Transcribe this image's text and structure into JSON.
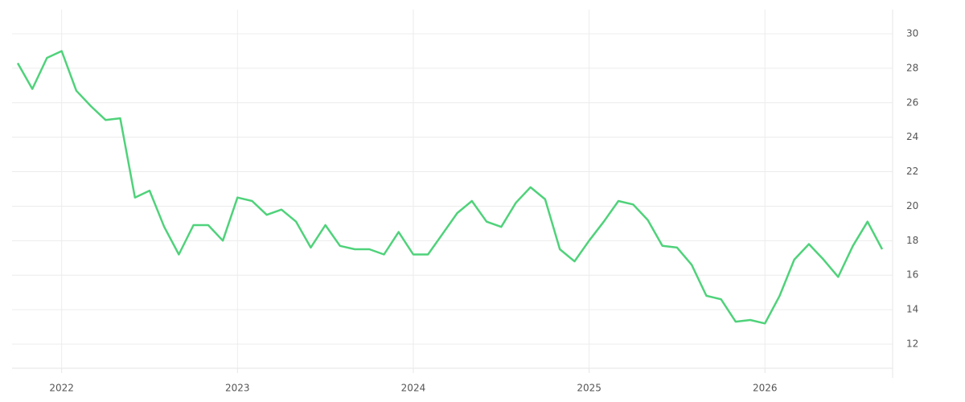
{
  "chart_data": {
    "type": "line",
    "categories": [
      null,
      null,
      null,
      "2022",
      null,
      null,
      null,
      null,
      null,
      null,
      null,
      null,
      null,
      null,
      null,
      "2023",
      null,
      null,
      null,
      null,
      null,
      null,
      null,
      null,
      null,
      null,
      null,
      "2024",
      null,
      null,
      null,
      null,
      null,
      null,
      null,
      null,
      null,
      null,
      null,
      "2025",
      null,
      null,
      null,
      null,
      null,
      null,
      null,
      null,
      null,
      null,
      null,
      "2026",
      null,
      null,
      null,
      null,
      null,
      null,
      null,
      null
    ],
    "values": [
      28.3,
      26.8,
      28.6,
      29.0,
      26.7,
      25.8,
      25.0,
      25.1,
      20.5,
      20.9,
      18.8,
      17.2,
      18.9,
      18.9,
      18.0,
      20.5,
      20.3,
      19.5,
      19.8,
      19.1,
      17.6,
      18.9,
      17.7,
      17.5,
      17.5,
      17.2,
      18.5,
      17.2,
      17.2,
      18.4,
      19.6,
      20.3,
      19.1,
      18.8,
      20.2,
      21.1,
      20.4,
      17.5,
      16.8,
      18.0,
      19.1,
      20.3,
      20.1,
      19.2,
      17.7,
      17.6,
      16.6,
      14.8,
      14.6,
      13.3,
      13.4,
      13.2,
      14.8,
      16.9,
      17.8,
      16.9,
      15.9,
      17.7,
      19.1,
      17.5
    ],
    "color": "#4fd27a",
    "ylim": [
      10.6,
      31.4
    ],
    "yticks": [
      12,
      14,
      16,
      18,
      20,
      22,
      24,
      26,
      28,
      30
    ],
    "grid": true
  }
}
